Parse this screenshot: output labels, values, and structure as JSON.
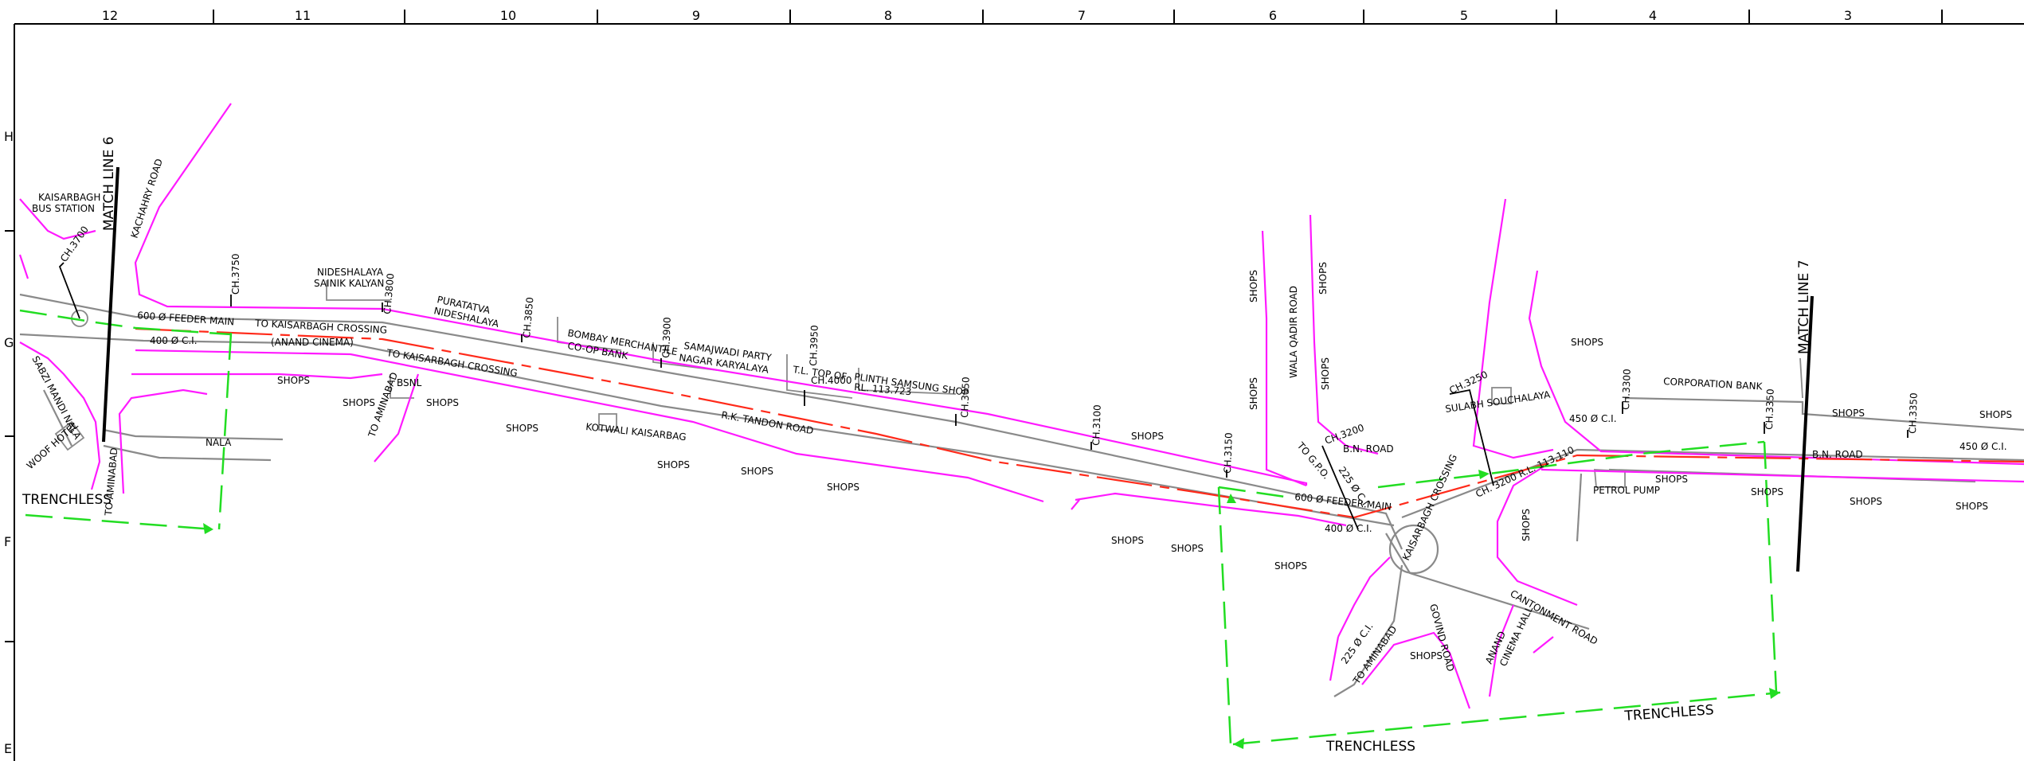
{
  "grid": {
    "columns": [
      "12",
      "11",
      "10",
      "9",
      "8",
      "7",
      "6",
      "5",
      "4",
      "3"
    ],
    "rows": [
      "H",
      "G",
      "F",
      "E"
    ]
  },
  "labels": {
    "match_line_6": "MATCH LINE 6",
    "match_line_7": "MATCH LINE 7",
    "kaisarbag_bus_station_1": "KAISARBAGH",
    "kaisarbag_bus_station_2": "BUS STATION",
    "kachahry_road": "KACHAHRY ROAD",
    "ch_3700": "CH.3700",
    "ch_3750": "CH.3750",
    "ch_3800": "CH.3800",
    "ch_3850": "CH.3850",
    "ch_3900": "CH.3900",
    "ch_3950": "CH.3950",
    "ch_4000": "CH.4000",
    "ch_3050": "CH.3050",
    "ch_3100": "CH.3100",
    "ch_3150": "CH.3150",
    "ch_3200": "CH.3200",
    "ch_3250": "CH.3250",
    "ch_3300": "CH.3300",
    "ch_3350": "CH.3350",
    "feeder_main_600_left": "600 Ø FEEDER MAIN",
    "feeder_main_600_right": "600 Ø FEEDER MAIN",
    "ci_400_left": "400 Ø C.I.",
    "ci_400_mid": "400 Ø C.I.",
    "ci_450_right": "450 Ø C.I.",
    "ci_450_far": "450 Ø C.I.",
    "to_kaisarbagh_crossing_1": "TO KAISARBAGH CROSSING",
    "to_kaisarbagh_crossing_2": "TO KAISARBAGH CROSSING",
    "anand_cinema": "(ANAND CINEMA)",
    "nideshalaya_1": "NIDESHALAYA",
    "nideshalaya_2": "SAINIK KALYAN",
    "puratatva_1": "PURATATVA",
    "puratatva_2": "NIDESHALAYA",
    "bombay_merchantile_1": "BOMBAY MERCHANTILE",
    "bombay_merchantile_2": "CO-OP BANK",
    "samajwadi_1": "SAMAJWADI PARTY",
    "samajwadi_2": "NAGAR KARYALAYA",
    "tl_top_1": "T.L. TOP OF",
    "tl_top_2": "RL. 113.723",
    "plinth_samsung": "PLINTH SAMSUNG SHOP",
    "rk_tandon_road": "R.K. TANDON ROAD",
    "kotwali_kaisarbag": "KOTWALI KAISARBAG",
    "bsnl": "BSNL",
    "to_aminabad_1": "TO AMINABAD",
    "to_aminabad_2": "TO AMINABAD",
    "to_aminabad_3": "TO AMINABAD",
    "sabzi_mandi_nala": "SABZI MANDI NALA",
    "woof_hotel": "WOOF HOTEL",
    "nala": "NALA",
    "trenchless_left": "TRENCHLESS",
    "trenchless_bottom_left": "TRENCHLESS",
    "trenchless_bottom_right": "TRENCHLESS",
    "shops": "SHOPS",
    "wala_qadir_road": "WALA QADIR ROAD",
    "bn_road_1": "B.N. ROAD",
    "bn_road_2": "B.N. ROAD",
    "to_gpo": "TO G.P.O.",
    "ci_225": "225 Ø C.I.",
    "sulabh": "SULABH SOUCHALAYA",
    "corporation_bank": "CORPORATION BANK",
    "ch3200_rl": "CH. 3200 R.L. 113.110",
    "petrol_pump": "PETROL PUMP",
    "kaisarbagh_crossing": "KAISARBAGH CROSSING",
    "cantonment_road": "CANTONMENT ROAD",
    "anand_cinema_hall_1": "ANAND",
    "anand_cinema_hall_2": "CINEMA HALL",
    "govind_road": "GOVIND ROAD",
    "ci_225_b": "225 Ø C.I."
  },
  "colors": {
    "road": "#8a8a8a",
    "road_edge": "#ff1aff",
    "feeder_main": "#ff2a1a",
    "trenchless": "#22dd22",
    "frame": "#000000"
  }
}
